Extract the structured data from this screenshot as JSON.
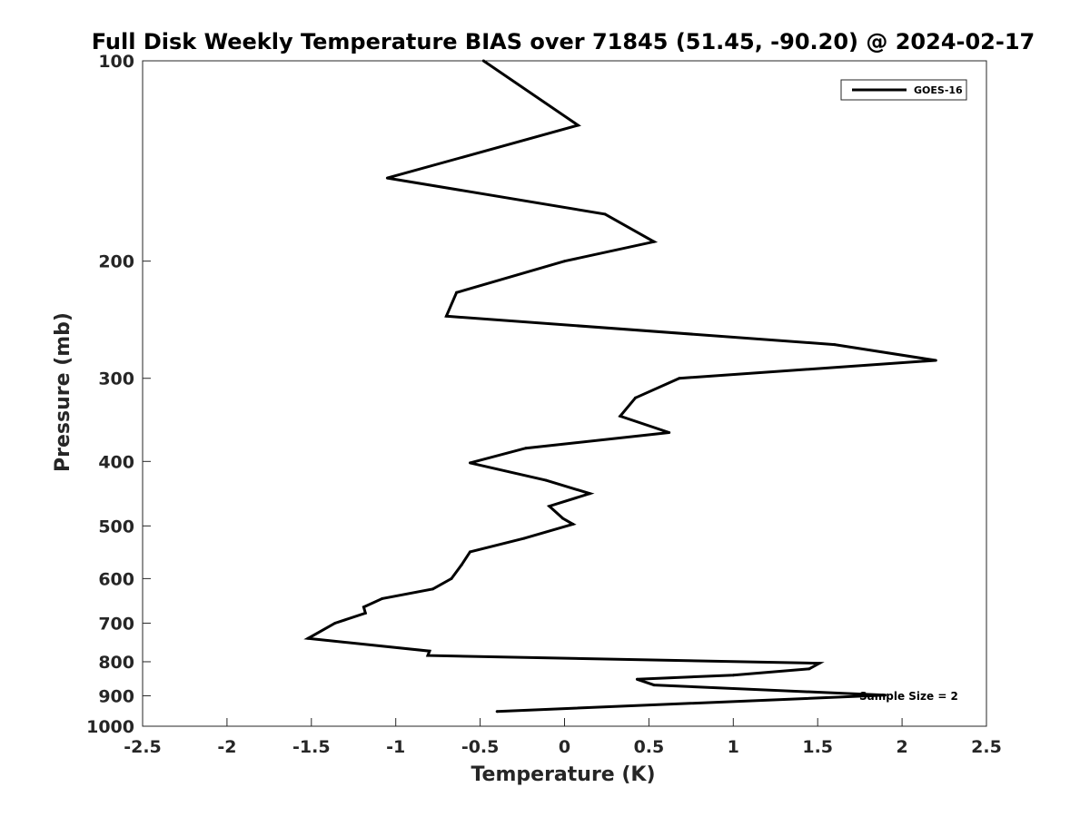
{
  "chart_data": {
    "type": "line",
    "title": "Full Disk Weekly Temperature BIAS over 71845 (51.45, -90.20) @ 2024-02-17",
    "xlabel": "Temperature (K)",
    "ylabel": "Pressure (mb)",
    "xlim": [
      -2.5,
      2.5
    ],
    "ylim": [
      100,
      1000
    ],
    "y_scale": "log",
    "y_reversed": true,
    "grid": false,
    "legend_position": "top-right",
    "x_ticks": [
      -2.5,
      -2,
      -1.5,
      -1,
      -0.5,
      0,
      0.5,
      1,
      1.5,
      2,
      2.5
    ],
    "x_tick_labels": [
      "-2.5",
      "-2",
      "-1.5",
      "-1",
      "-0.5",
      "0",
      "0.5",
      "1",
      "1.5",
      "2",
      "2.5"
    ],
    "y_ticks": [
      100,
      200,
      300,
      400,
      500,
      600,
      700,
      800,
      900,
      1000
    ],
    "y_tick_labels": [
      "100",
      "200",
      "300",
      "400",
      "500",
      "600",
      "700",
      "800",
      "900",
      "1000"
    ],
    "series": [
      {
        "name": "GOES-16",
        "color": "#000000",
        "points": [
          [
            -0.48,
            100
          ],
          [
            0.08,
            125
          ],
          [
            -1.05,
            150
          ],
          [
            0.24,
            170
          ],
          [
            0.53,
            187
          ],
          [
            0.0,
            200
          ],
          [
            -0.64,
            223
          ],
          [
            -0.7,
            242
          ],
          [
            1.6,
            267
          ],
          [
            2.2,
            282
          ],
          [
            0.68,
            300
          ],
          [
            0.42,
            321
          ],
          [
            0.33,
            342
          ],
          [
            0.62,
            362
          ],
          [
            -0.23,
            382
          ],
          [
            -0.56,
            402
          ],
          [
            -0.11,
            427
          ],
          [
            0.15,
            447
          ],
          [
            -0.09,
            467
          ],
          [
            -0.01,
            487
          ],
          [
            0.05,
            497
          ],
          [
            -0.24,
            522
          ],
          [
            -0.56,
            547
          ],
          [
            -0.61,
            572
          ],
          [
            -0.67,
            600
          ],
          [
            -0.78,
            622
          ],
          [
            -1.08,
            643
          ],
          [
            -1.19,
            662
          ],
          [
            -1.18,
            676
          ],
          [
            -1.36,
            700
          ],
          [
            -1.52,
            738
          ],
          [
            -0.8,
            771
          ],
          [
            -0.81,
            783
          ],
          [
            1.51,
            804
          ],
          [
            1.45,
            820
          ],
          [
            1.0,
            838
          ],
          [
            0.43,
            850
          ],
          [
            0.53,
            867
          ],
          [
            1.9,
            898
          ],
          [
            -0.4,
            950
          ]
        ]
      }
    ],
    "annotation": "Sample Size = 2"
  }
}
